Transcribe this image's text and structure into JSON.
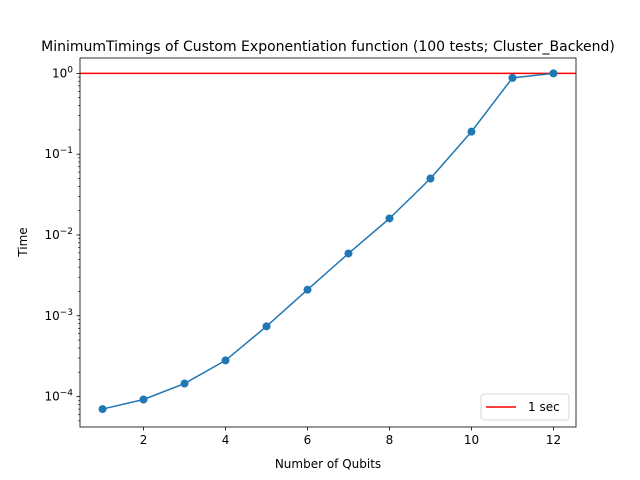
{
  "chart_data": {
    "type": "line",
    "title": "MinimumTimings of Custom Exponentiation function (100 tests; Cluster_Backend)",
    "xlabel": "Number of Qubits",
    "ylabel": "Time",
    "xlim": [
      0.45,
      12.55
    ],
    "ylim": [
      4.2e-05,
      1.55
    ],
    "yscale": "log",
    "grid": false,
    "x_ticks": [
      2,
      4,
      6,
      8,
      10,
      12
    ],
    "x_tick_labels": [
      "2",
      "4",
      "6",
      "8",
      "10",
      "12"
    ],
    "y_ticks": [
      0.0001,
      0.001,
      0.01,
      0.1,
      1
    ],
    "y_tick_labels": [
      {
        "base": "10",
        "exp": "−4"
      },
      {
        "base": "10",
        "exp": "−3"
      },
      {
        "base": "10",
        "exp": "−2"
      },
      {
        "base": "10",
        "exp": "−1"
      },
      {
        "base": "10",
        "exp": "0"
      }
    ],
    "series": [
      {
        "color": "#1f77b4",
        "marker": "circle",
        "x": [
          1,
          2,
          3,
          4,
          5,
          6,
          7,
          8,
          9,
          10,
          11,
          12
        ],
        "y": [
          7e-05,
          9.2e-05,
          0.000145,
          0.00028,
          0.00074,
          0.0021,
          0.0059,
          0.016,
          0.05,
          0.19,
          0.88,
          1.0
        ]
      }
    ],
    "reference_lines": [
      {
        "name": "1 sec",
        "y": 1,
        "color": "#ff0000"
      }
    ],
    "legend": {
      "location": "lower-right",
      "entries": [
        "1 sec"
      ]
    }
  }
}
